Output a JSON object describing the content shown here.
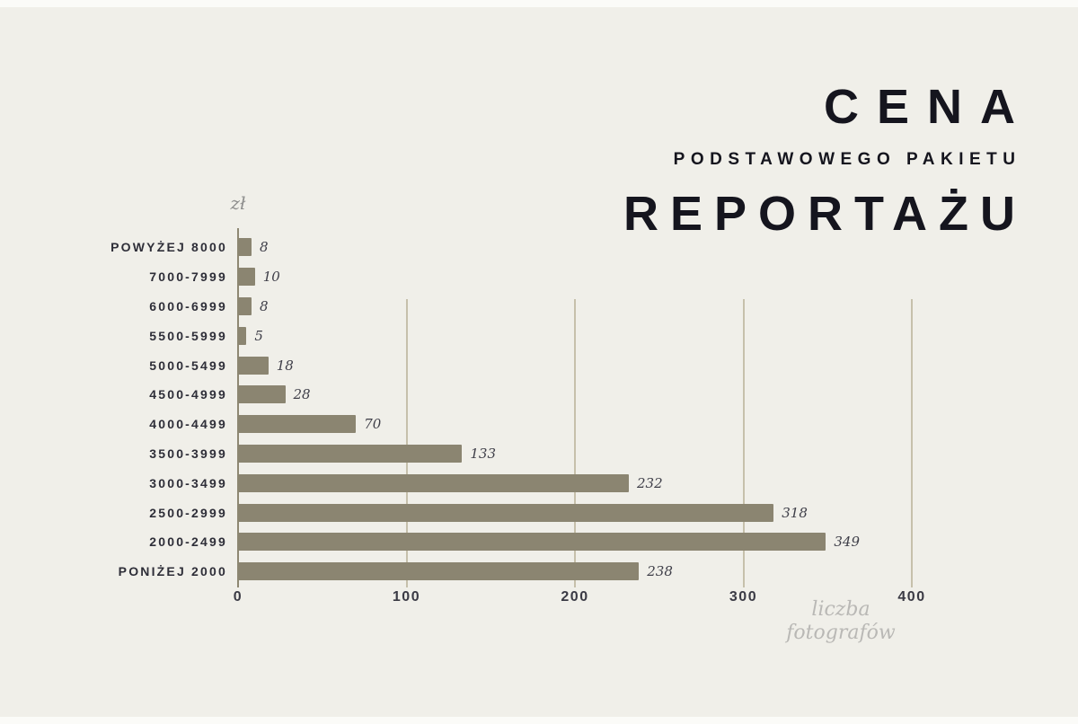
{
  "title": {
    "line1": "CENA",
    "line2": "PODSTAWOWEGO PAKIETU",
    "line3": "REPORTAŻU"
  },
  "axis": {
    "y_unit_label": "zł",
    "x_axis_label_line1": "liczba",
    "x_axis_label_line2": "fotografów"
  },
  "chart_data": {
    "type": "bar",
    "orientation": "horizontal",
    "title": "CENA PODSTAWOWEGO PAKIETU REPORTAŻU",
    "xlabel": "liczba fotografów",
    "ylabel": "zł",
    "categories": [
      "POWYŻEJ 8000",
      "7000-7999",
      "6000-6999",
      "5500-5999",
      "5000-5499",
      "4500-4999",
      "4000-4499",
      "3500-3999",
      "3000-3499",
      "2500-2999",
      "2000-2499",
      "PONIŻEJ 2000"
    ],
    "values": [
      8,
      10,
      8,
      5,
      18,
      28,
      70,
      133,
      232,
      318,
      349,
      238
    ],
    "xlim": [
      0,
      400
    ],
    "xticks": [
      0,
      100,
      200,
      300,
      400
    ],
    "grid": "vertical",
    "bar_color": "#8b8571",
    "gridline_color": "#c6c0ab",
    "background_color": "#f0efe9",
    "title_color": "#15151e"
  }
}
